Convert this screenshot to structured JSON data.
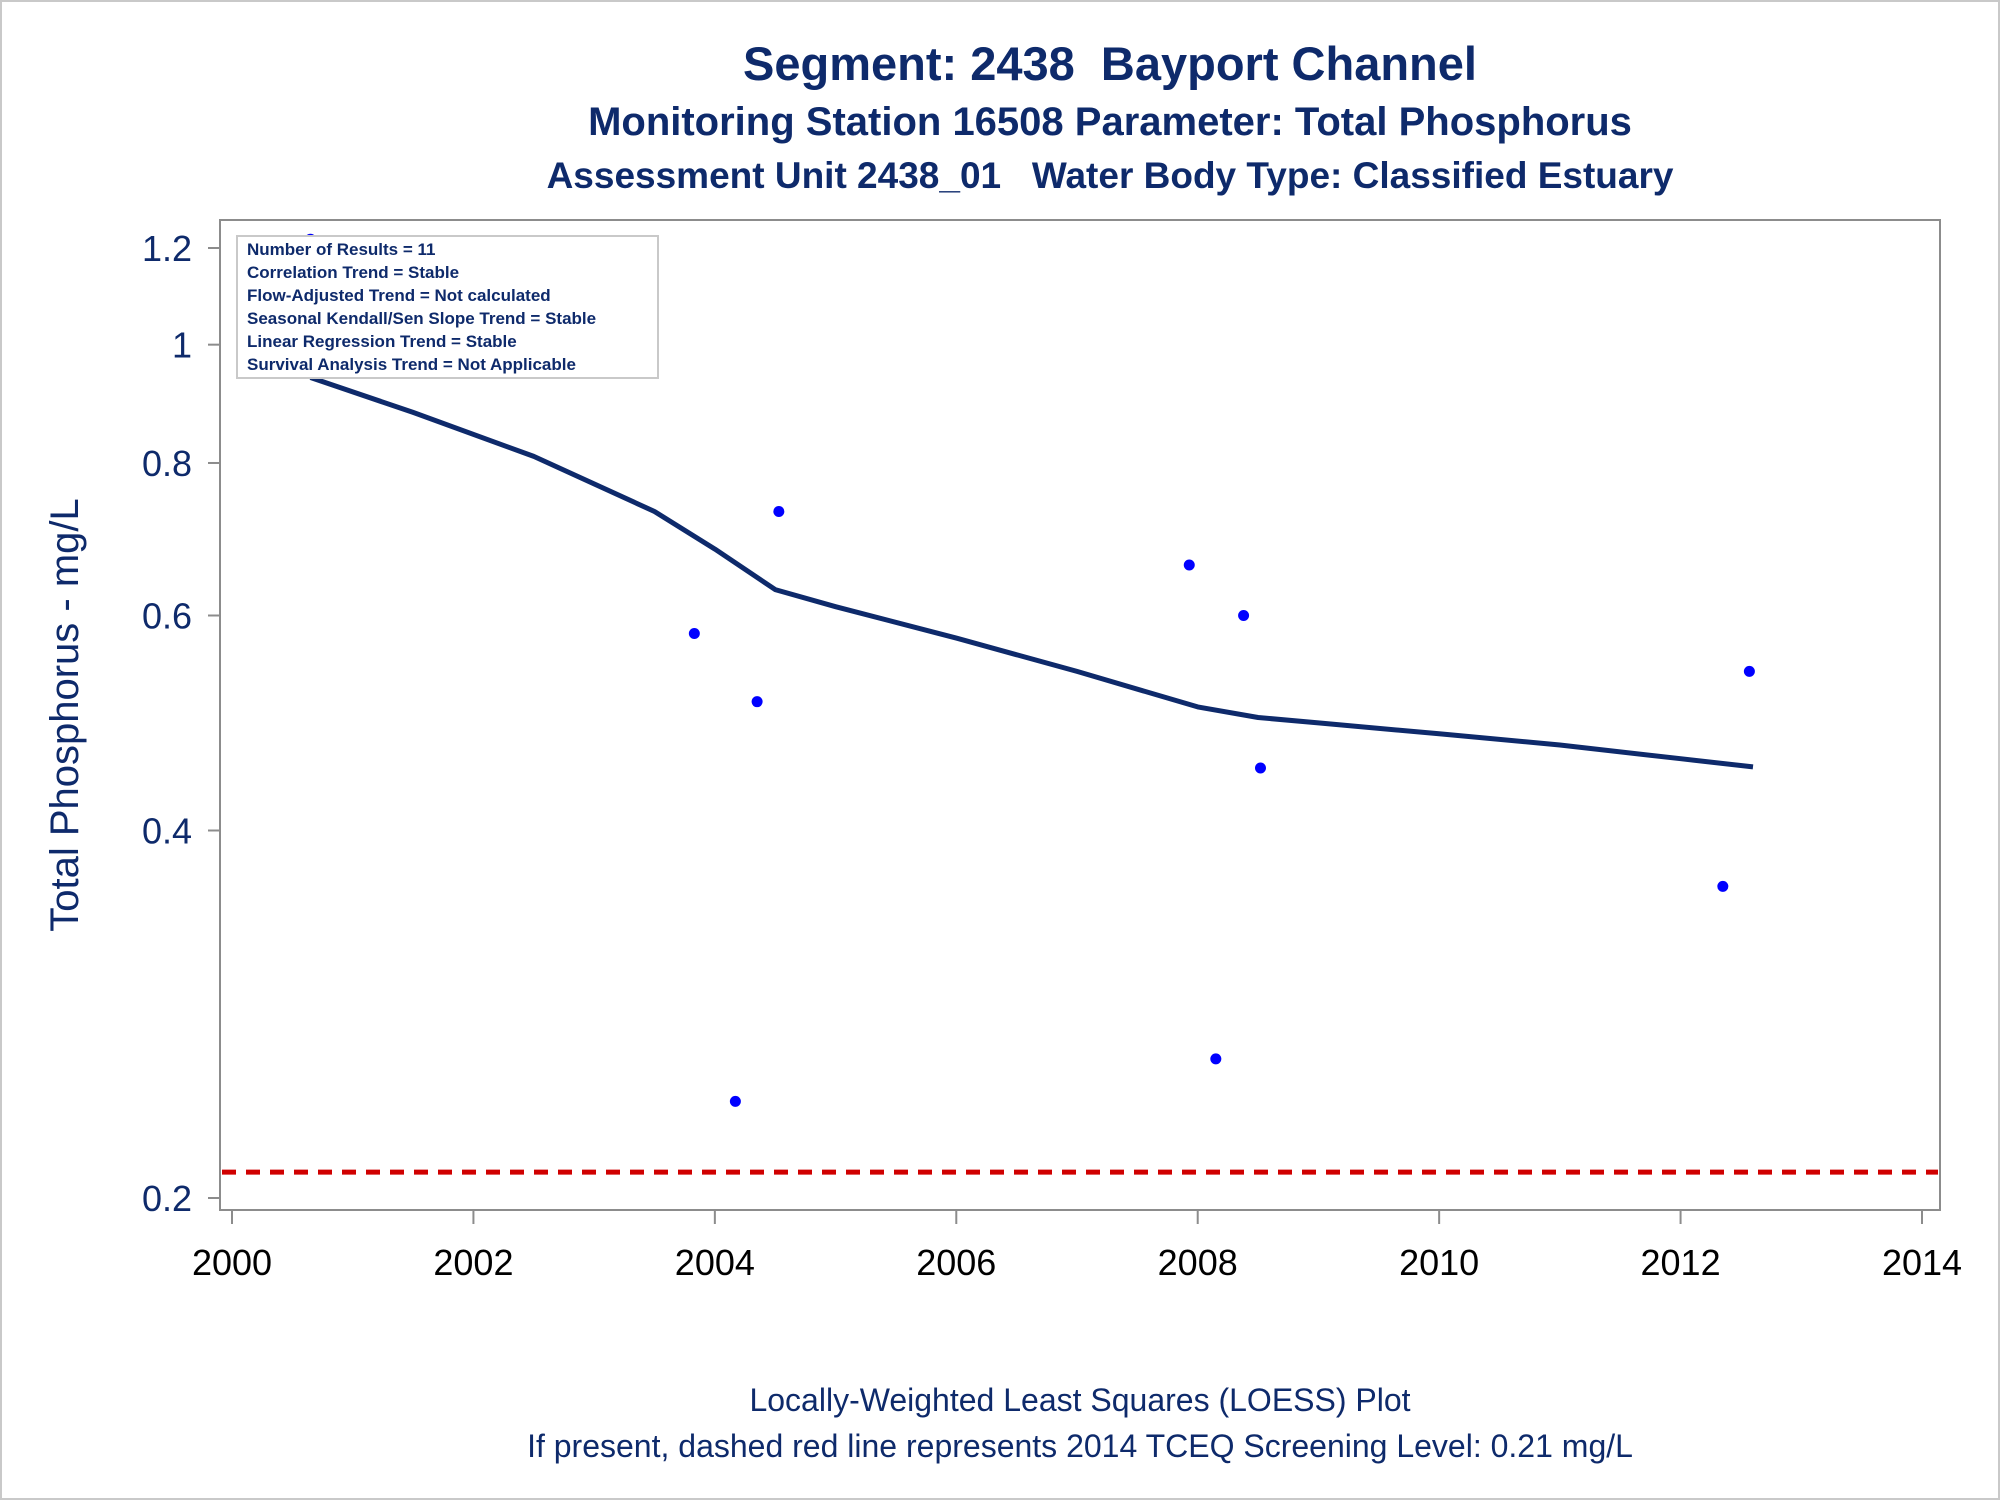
{
  "chart_data": {
    "type": "scatter",
    "title": "Segment: 2438  Bayport Channel",
    "subtitles": [
      "Monitoring Station 16508 Parameter: Total Phosphorus",
      "Assessment Unit 2438_01   Water Body Type: Classified Estuary"
    ],
    "xlabel": "",
    "ylabel": "Total Phosphorus - mg/L",
    "x_scale": "linear",
    "y_scale": "log",
    "xlim": [
      2000,
      2014
    ],
    "ylim": [
      0.19,
      1.25
    ],
    "x_ticks": [
      2000,
      2002,
      2004,
      2006,
      2008,
      2010,
      2012,
      2014
    ],
    "y_ticks": [
      0.2,
      0.4,
      0.6,
      0.8,
      1,
      1.2
    ],
    "x_tick_labels": [
      "2000",
      "2002",
      "2004",
      "2006",
      "2008",
      "2010",
      "2012",
      "2014"
    ],
    "y_tick_labels": [
      "0.2",
      "0.4",
      "0.6",
      "0.8",
      "1",
      "1.2"
    ],
    "grid": false,
    "points": [
      {
        "x": 2000.65,
        "y": 1.22
      },
      {
        "x": 2003.83,
        "y": 0.58
      },
      {
        "x": 2004.17,
        "y": 0.24
      },
      {
        "x": 2004.35,
        "y": 0.51
      },
      {
        "x": 2004.53,
        "y": 0.73
      },
      {
        "x": 2007.93,
        "y": 0.66
      },
      {
        "x": 2008.15,
        "y": 0.26
      },
      {
        "x": 2008.38,
        "y": 0.6
      },
      {
        "x": 2008.52,
        "y": 0.45
      },
      {
        "x": 2012.35,
        "y": 0.36
      },
      {
        "x": 2012.57,
        "y": 0.54
      }
    ],
    "loess_line": {
      "x": [
        2000.65,
        2001.5,
        2002.5,
        2003.5,
        2004.0,
        2004.5,
        2005.0,
        2006.0,
        2007.0,
        2008.0,
        2008.5,
        2009.0,
        2010.0,
        2011.0,
        2012.0,
        2012.6
      ],
      "y": [
        0.94,
        0.88,
        0.81,
        0.73,
        0.68,
        0.63,
        0.61,
        0.575,
        0.54,
        0.505,
        0.495,
        0.49,
        0.48,
        0.47,
        0.458,
        0.451
      ],
      "color": "#0e2a6b"
    },
    "screening_level": {
      "y": 0.21,
      "color": "#d00000",
      "style": "dashed"
    },
    "point_color": "#0000ff",
    "legend_placement": "top-left",
    "stats_box": [
      "Number of Results = 11",
      "Correlation Trend = Stable",
      "Flow-Adjusted Trend = Not calculated",
      "Seasonal Kendall/Sen Slope Trend = Stable",
      "Linear Regression Trend = Stable",
      "Survival Analysis Trend = Not Applicable"
    ]
  },
  "footnotes": [
    "Locally-Weighted Least Squares (LOESS) Plot",
    "If present, dashed red line represents 2014 TCEQ Screening Level: 0.21 mg/L"
  ],
  "colors": {
    "text": "#0e2a6b",
    "axis": "#8c8c8c",
    "frame": "#c9c9c9"
  }
}
